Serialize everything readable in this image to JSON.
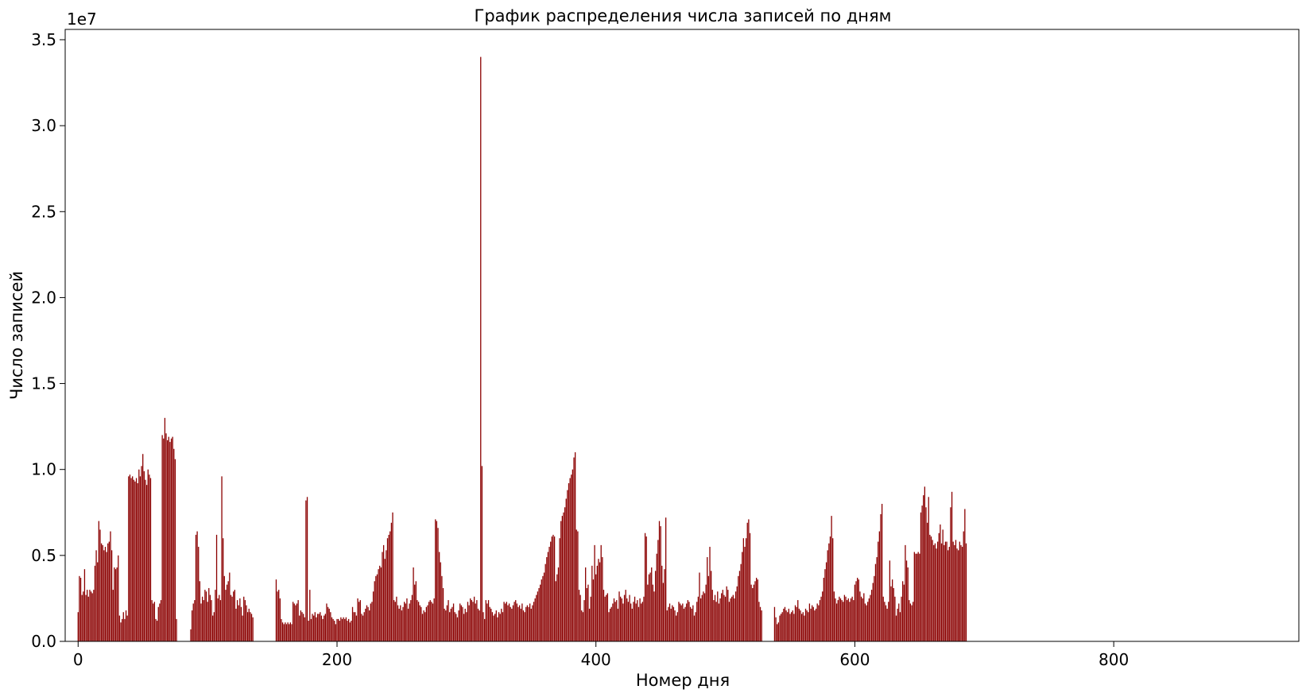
{
  "chart_data": {
    "type": "bar",
    "title": "График распределения числа записей по дням",
    "xlabel": "Номер дня",
    "ylabel": "Число записей",
    "y_offset_label": "1e7",
    "xlim": [
      -10,
      943
    ],
    "ylim": [
      0,
      35600000
    ],
    "x_ticks": [
      0,
      200,
      400,
      600,
      800
    ],
    "x_tick_labels": [
      "0",
      "200",
      "400",
      "600",
      "800"
    ],
    "y_ticks": [
      0,
      5000000,
      10000000,
      15000000,
      20000000,
      25000000,
      30000000,
      35000000
    ],
    "y_tick_labels": [
      "0.0",
      "0.5",
      "1.0",
      "1.5",
      "2.0",
      "2.5",
      "3.0",
      "3.5"
    ],
    "bar_color": "#8b0000",
    "grid": false,
    "x_start": 0,
    "values": [
      1700000,
      3800000,
      3700000,
      2700000,
      2900000,
      4200000,
      2700000,
      3000000,
      2600000,
      3000000,
      2900000,
      2800000,
      3000000,
      4400000,
      5300000,
      4600000,
      7000000,
      6500000,
      5700000,
      5600000,
      5300000,
      5500000,
      5200000,
      5700000,
      5800000,
      6400000,
      5300000,
      3000000,
      4300000,
      4200000,
      4300000,
      5000000,
      1500000,
      1100000,
      1300000,
      1700000,
      1300000,
      1800000,
      1500000,
      9600000,
      9700000,
      9500000,
      9600000,
      9400000,
      9300000,
      9500000,
      9200000,
      10000000,
      9600000,
      10200000,
      10900000,
      9900000,
      9400000,
      9100000,
      10000000,
      9700000,
      9500000,
      2400000,
      2200000,
      2300000,
      1300000,
      1200000,
      2000000,
      2200000,
      2400000,
      12000000,
      11800000,
      13000000,
      12100000,
      11700000,
      11900000,
      11600000,
      11800000,
      11900000,
      11200000,
      10600000,
      1300000,
      0,
      0,
      0,
      0,
      0,
      0,
      0,
      0,
      0,
      0,
      700000,
      1800000,
      2200000,
      2400000,
      6200000,
      6400000,
      5500000,
      3500000,
      2200000,
      2600000,
      2400000,
      3000000,
      2900000,
      2300000,
      3100000,
      2700000,
      2400000,
      1500000,
      1700000,
      3000000,
      6200000,
      2500000,
      2700000,
      2400000,
      9600000,
      6000000,
      3800000,
      3000000,
      3300000,
      3500000,
      4000000,
      2700000,
      2600000,
      2900000,
      3000000,
      1900000,
      2400000,
      2100000,
      2500000,
      2000000,
      1500000,
      2600000,
      2400000,
      2100000,
      1700000,
      1900000,
      1700000,
      1600000,
      1400000,
      0,
      0,
      0,
      0,
      0,
      0,
      0,
      0,
      0,
      0,
      0,
      0,
      0,
      0,
      0,
      0,
      0,
      3600000,
      2900000,
      3000000,
      2500000,
      1300000,
      1100000,
      1000000,
      1100000,
      1000000,
      1100000,
      1000000,
      1100000,
      1000000,
      2300000,
      2200000,
      2100000,
      2200000,
      2400000,
      1500000,
      1800000,
      1700000,
      1600000,
      1400000,
      8200000,
      8400000,
      1200000,
      3000000,
      1300000,
      1600000,
      1500000,
      1700000,
      1400000,
      1600000,
      1600000,
      1700000,
      1500000,
      1300000,
      1500000,
      1600000,
      2200000,
      2000000,
      1900000,
      1700000,
      1400000,
      1300000,
      1200000,
      1000000,
      1300000,
      1300000,
      1200000,
      1400000,
      1300000,
      1400000,
      1300000,
      1400000,
      1200000,
      1300000,
      1100000,
      1200000,
      2000000,
      1700000,
      1700000,
      1500000,
      2500000,
      2300000,
      2400000,
      1600000,
      1500000,
      1700000,
      1900000,
      2100000,
      2000000,
      1800000,
      2200000,
      2300000,
      2900000,
      3500000,
      3800000,
      3900000,
      4200000,
      4400000,
      4300000,
      5200000,
      5600000,
      4800000,
      5300000,
      6000000,
      6200000,
      6400000,
      6900000,
      7500000,
      2400000,
      2300000,
      2600000,
      2100000,
      1900000,
      2100000,
      1800000,
      2000000,
      2300000,
      2200000,
      2500000,
      1900000,
      2200000,
      2400000,
      2700000,
      4300000,
      3300000,
      3500000,
      2400000,
      2300000,
      2100000,
      2000000,
      1600000,
      1800000,
      1700000,
      2000000,
      2100000,
      2300000,
      2400000,
      2300000,
      2200000,
      2500000,
      7100000,
      7000000,
      6600000,
      5200000,
      4600000,
      3800000,
      3100000,
      1900000,
      1800000,
      2100000,
      2400000,
      1700000,
      1900000,
      2000000,
      2200000,
      1700000,
      1600000,
      1400000,
      1800000,
      2200000,
      2100000,
      2000000,
      1600000,
      1900000,
      1700000,
      2300000,
      2100000,
      2500000,
      2400000,
      2300000,
      2600000,
      2200000,
      2400000,
      1900000,
      1800000,
      34000000,
      10200000,
      1700000,
      1300000,
      2400000,
      2200000,
      2400000,
      2000000,
      1900000,
      1700000,
      1500000,
      1600000,
      1800000,
      1400000,
      1700000,
      1600000,
      1900000,
      1700000,
      2300000,
      2200000,
      2300000,
      2100000,
      2200000,
      2000000,
      1900000,
      2100000,
      2300000,
      2400000,
      2200000,
      2000000,
      2100000,
      1900000,
      2200000,
      1800000,
      1700000,
      2000000,
      2100000,
      2000000,
      2200000,
      1900000,
      2100000,
      2300000,
      2500000,
      2700000,
      2900000,
      3100000,
      3300000,
      3600000,
      3800000,
      4000000,
      4500000,
      4900000,
      5200000,
      5500000,
      5800000,
      6100000,
      6200000,
      6100000,
      3500000,
      3900000,
      4300000,
      6000000,
      7000000,
      7300000,
      7500000,
      7800000,
      8300000,
      8800000,
      9200000,
      9500000,
      9700000,
      10000000,
      10700000,
      11000000,
      6500000,
      6400000,
      3000000,
      2700000,
      1800000,
      1700000,
      2400000,
      4300000,
      3100000,
      3300000,
      1900000,
      2600000,
      4400000,
      3600000,
      5600000,
      3900000,
      4400000,
      4800000,
      4600000,
      5600000,
      4900000,
      3000000,
      2600000,
      2700000,
      2800000,
      1700000,
      1900000,
      2000000,
      2200000,
      2500000,
      2300000,
      2400000,
      1900000,
      2900000,
      2600000,
      2500000,
      2200000,
      2700000,
      3000000,
      2500000,
      2300000,
      2700000,
      2200000,
      1900000,
      2300000,
      2600000,
      2200000,
      2400000,
      2000000,
      2500000,
      2200000,
      2300000,
      2600000,
      6300000,
      6100000,
      3300000,
      3900000,
      4000000,
      4300000,
      3300000,
      2900000,
      4100000,
      5100000,
      5900000,
      7000000,
      6700000,
      4400000,
      3400000,
      4200000,
      7200000,
      1800000,
      2000000,
      2200000,
      1900000,
      2100000,
      2000000,
      1800000,
      1500000,
      1700000,
      2300000,
      2200000,
      2100000,
      2200000,
      1900000,
      2000000,
      2200000,
      2400000,
      2300000,
      2000000,
      1900000,
      2100000,
      1500000,
      1700000,
      2300000,
      2600000,
      4000000,
      2500000,
      2700000,
      2900000,
      2800000,
      3300000,
      4900000,
      3800000,
      5500000,
      4100000,
      3000000,
      2400000,
      2700000,
      2300000,
      2900000,
      2200000,
      2500000,
      2800000,
      3000000,
      2700000,
      2600000,
      3200000,
      3000000,
      2300000,
      2500000,
      2600000,
      2700000,
      2500000,
      2900000,
      3200000,
      3800000,
      4100000,
      4500000,
      5200000,
      6000000,
      5500000,
      6000000,
      6900000,
      7100000,
      6300000,
      3300000,
      3100000,
      3300000,
      3500000,
      3700000,
      3600000,
      2300000,
      2000000,
      1800000,
      0,
      0,
      0,
      0,
      0,
      0,
      0,
      0,
      0,
      2000000,
      1400000,
      1000000,
      1100000,
      1500000,
      1600000,
      1700000,
      1900000,
      2000000,
      1800000,
      1700000,
      1900000,
      1600000,
      1700000,
      1800000,
      1600000,
      2100000,
      2000000,
      2400000,
      1900000,
      1800000,
      1600000,
      1700000,
      1500000,
      1900000,
      1800000,
      1700000,
      2200000,
      1900000,
      2100000,
      2000000,
      1800000,
      1900000,
      2200000,
      2100000,
      2400000,
      2600000,
      2900000,
      3700000,
      4200000,
      4600000,
      5300000,
      5700000,
      6100000,
      7300000,
      6000000,
      2900000,
      2500000,
      2200000,
      2400000,
      2600000,
      2500000,
      2400000,
      2300000,
      2700000,
      2600000,
      2400000,
      2500000,
      2300000,
      2500000,
      2600000,
      2400000,
      3300000,
      3500000,
      3700000,
      3600000,
      2900000,
      2600000,
      2500000,
      2800000,
      2200000,
      2100000,
      2300000,
      2500000,
      2700000,
      3000000,
      3400000,
      3800000,
      4500000,
      4900000,
      5800000,
      6400000,
      7400000,
      8000000,
      2600000,
      2300000,
      2100000,
      1900000,
      2300000,
      4700000,
      3200000,
      3600000,
      3100000,
      2600000,
      1500000,
      1900000,
      2200000,
      1700000,
      2600000,
      3500000,
      3300000,
      5600000,
      4700000,
      4300000,
      2400000,
      2200000,
      2100000,
      2300000,
      5200000,
      5100000,
      5100000,
      5200000,
      5100000,
      7500000,
      7900000,
      8500000,
      9000000,
      7800000,
      6900000,
      8400000,
      6200000,
      6100000,
      5900000,
      5600000,
      5700000,
      5400000,
      5800000,
      6300000,
      6800000,
      5700000,
      6500000,
      5600000,
      5800000,
      5800000,
      5300000,
      5500000,
      7800000,
      8700000,
      5800000,
      5600000,
      5900000,
      5400000,
      5300000,
      5800000,
      5600000,
      5500000,
      6400000,
      7700000,
      5700000
    ]
  }
}
